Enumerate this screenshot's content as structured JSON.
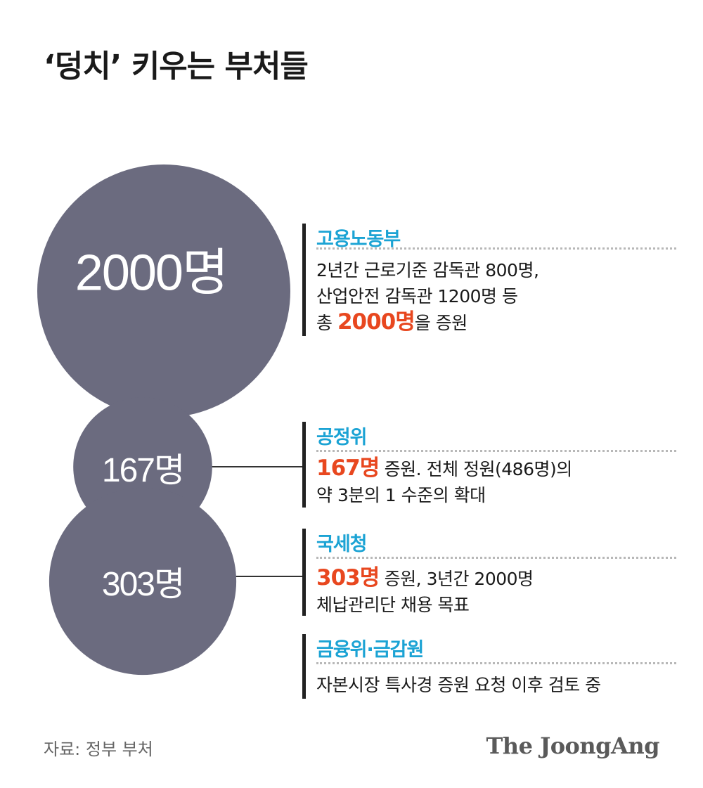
{
  "title": "‘덩치’ 키우는 부처들",
  "chart_data": {
    "type": "bubble",
    "title": "‘덩치’ 키우는 부처들",
    "items": [
      {
        "agency": "고용노동부",
        "value": 2000,
        "label": "2000명",
        "desc_lines": [
          "2년간 근로기준 감독관 800명,",
          "산업안전 감독관 1200명 등"
        ],
        "highlight_prefix": "총 ",
        "highlight": "2000명",
        "highlight_suffix": "을 증원"
      },
      {
        "agency": "공정위",
        "value": 167,
        "label": "167명",
        "highlight": "167명",
        "highlight_suffix": " 증원. 전체 정원(486명)의",
        "desc_lines": [
          "약 3분의 1 수준의 확대"
        ]
      },
      {
        "agency": "국세청",
        "value": 303,
        "label": "303명",
        "highlight": "303명",
        "highlight_suffix": " 증원, 3년간 2000명",
        "desc_lines": [
          "체납관리단 채용 목표"
        ]
      },
      {
        "agency": "금융위·금감원",
        "value": null,
        "label": "",
        "desc_lines": [
          "자본시장 특사경 증원 요청 이후 검토 중"
        ]
      }
    ]
  },
  "colors": {
    "bubble": "#6b6b7f",
    "agency": "#1ba3d4",
    "highlight": "#e8471f",
    "connector": "#333333"
  },
  "source": "자료: 정부 부처",
  "logo": "The JoongAng"
}
